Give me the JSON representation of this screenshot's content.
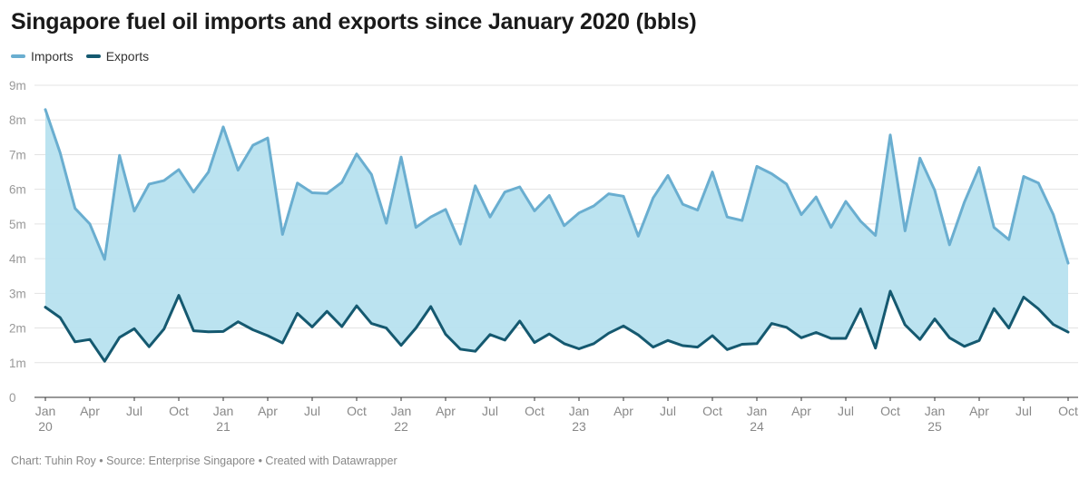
{
  "chart_data": {
    "type": "area",
    "title": "Singapore fuel oil imports and exports since January 2020 (bbls)",
    "x": [
      "Jan 2020",
      "Feb 2020",
      "Mar 2020",
      "Apr 2020",
      "May 2020",
      "Jun 2020",
      "Jul 2020",
      "Aug 2020",
      "Sep 2020",
      "Oct 2020",
      "Nov 2020",
      "Dec 2020",
      "Jan 2021",
      "Feb 2021",
      "Mar 2021",
      "Apr 2021",
      "May 2021",
      "Jun 2021",
      "Jul 2021",
      "Aug 2021",
      "Sep 2021",
      "Oct 2021",
      "Nov 2021",
      "Dec 2021",
      "Jan 2022",
      "Feb 2022",
      "Mar 2022",
      "Apr 2022",
      "May 2022",
      "Jun 2022",
      "Jul 2022",
      "Aug 2022",
      "Sep 2022",
      "Oct 2022",
      "Nov 2022",
      "Dec 2022",
      "Jan 2023",
      "Feb 2023",
      "Mar 2023",
      "Apr 2023",
      "May 2023",
      "Jun 2023",
      "Jul 2023",
      "Aug 2023",
      "Sep 2023",
      "Oct 2023",
      "Nov 2023",
      "Dec 2023",
      "Jan 2024",
      "Feb 2024",
      "Mar 2024",
      "Apr 2024",
      "May 2024",
      "Jun 2024",
      "Jul 2024",
      "Aug 2024",
      "Sep 2024",
      "Oct 2024",
      "Nov 2024",
      "Dec 2024",
      "Jan 2025",
      "Feb 2025",
      "Mar 2025",
      "Apr 2025",
      "May 2025",
      "Jun 2025",
      "Jul 2025",
      "Aug 2025",
      "Sep 2025",
      "Oct 2025"
    ],
    "series": [
      {
        "name": "Imports",
        "color": "#6aaed0",
        "values": [
          8.3,
          7.05,
          5.45,
          5.0,
          3.98,
          6.98,
          5.37,
          6.15,
          6.25,
          6.57,
          5.92,
          6.5,
          7.8,
          6.55,
          7.27,
          7.48,
          4.7,
          6.18,
          5.9,
          5.88,
          6.2,
          7.02,
          6.43,
          5.02,
          6.93,
          4.9,
          5.2,
          5.42,
          4.42,
          6.1,
          5.2,
          5.92,
          6.07,
          5.38,
          5.82,
          4.95,
          5.32,
          5.52,
          5.87,
          5.8,
          4.65,
          5.75,
          6.4,
          5.57,
          5.4,
          6.5,
          5.2,
          5.1,
          6.66,
          6.45,
          6.15,
          5.27,
          5.78,
          4.9,
          5.65,
          5.08,
          4.67,
          7.57,
          4.8,
          6.9,
          5.97,
          4.4,
          5.63,
          6.63,
          4.9,
          4.55,
          6.37,
          6.18,
          5.27,
          3.87
        ]
      },
      {
        "name": "Exports",
        "color": "#155970",
        "values": [
          2.6,
          2.3,
          1.6,
          1.67,
          1.04,
          1.73,
          1.98,
          1.46,
          1.97,
          2.94,
          1.92,
          1.89,
          1.9,
          2.18,
          1.95,
          1.78,
          1.57,
          2.42,
          2.03,
          2.48,
          2.04,
          2.64,
          2.13,
          2.0,
          1.5,
          2.0,
          2.62,
          1.82,
          1.39,
          1.33,
          1.81,
          1.65,
          2.2,
          1.58,
          1.83,
          1.55,
          1.4,
          1.55,
          1.85,
          2.06,
          1.8,
          1.45,
          1.64,
          1.49,
          1.45,
          1.78,
          1.38,
          1.53,
          1.55,
          2.13,
          2.02,
          1.72,
          1.87,
          1.7,
          1.7,
          2.55,
          1.42,
          3.06,
          2.09,
          1.67,
          2.26,
          1.72,
          1.47,
          1.64,
          2.56,
          2.0,
          2.89,
          2.55,
          2.1,
          1.88
        ]
      }
    ],
    "area_fill": "#b7e1ef",
    "ylim": [
      0,
      9
    ],
    "y_ticks": [
      "0",
      "1m",
      "2m",
      "3m",
      "4m",
      "5m",
      "6m",
      "7m",
      "8m",
      "9m"
    ],
    "x_ticks": [
      {
        "index": 0,
        "label": "Jan",
        "year": "20"
      },
      {
        "index": 3,
        "label": "Apr"
      },
      {
        "index": 6,
        "label": "Jul"
      },
      {
        "index": 9,
        "label": "Oct"
      },
      {
        "index": 12,
        "label": "Jan",
        "year": "21"
      },
      {
        "index": 15,
        "label": "Apr"
      },
      {
        "index": 18,
        "label": "Jul"
      },
      {
        "index": 21,
        "label": "Oct"
      },
      {
        "index": 24,
        "label": "Jan",
        "year": "22"
      },
      {
        "index": 27,
        "label": "Apr"
      },
      {
        "index": 30,
        "label": "Jul"
      },
      {
        "index": 33,
        "label": "Oct"
      },
      {
        "index": 36,
        "label": "Jan",
        "year": "23"
      },
      {
        "index": 39,
        "label": "Apr"
      },
      {
        "index": 42,
        "label": "Jul"
      },
      {
        "index": 45,
        "label": "Oct"
      },
      {
        "index": 48,
        "label": "Jan",
        "year": "24"
      },
      {
        "index": 51,
        "label": "Apr"
      },
      {
        "index": 54,
        "label": "Jul"
      },
      {
        "index": 57,
        "label": "Oct"
      },
      {
        "index": 60,
        "label": "Jan",
        "year": "25"
      },
      {
        "index": 63,
        "label": "Apr"
      },
      {
        "index": 66,
        "label": "Jul"
      },
      {
        "index": 69,
        "label": "Oct"
      }
    ],
    "legend_position": "top-left",
    "grid": true
  },
  "footer": "Chart: Tuhin Roy • Source: Enterprise Singapore • Created with Datawrapper"
}
